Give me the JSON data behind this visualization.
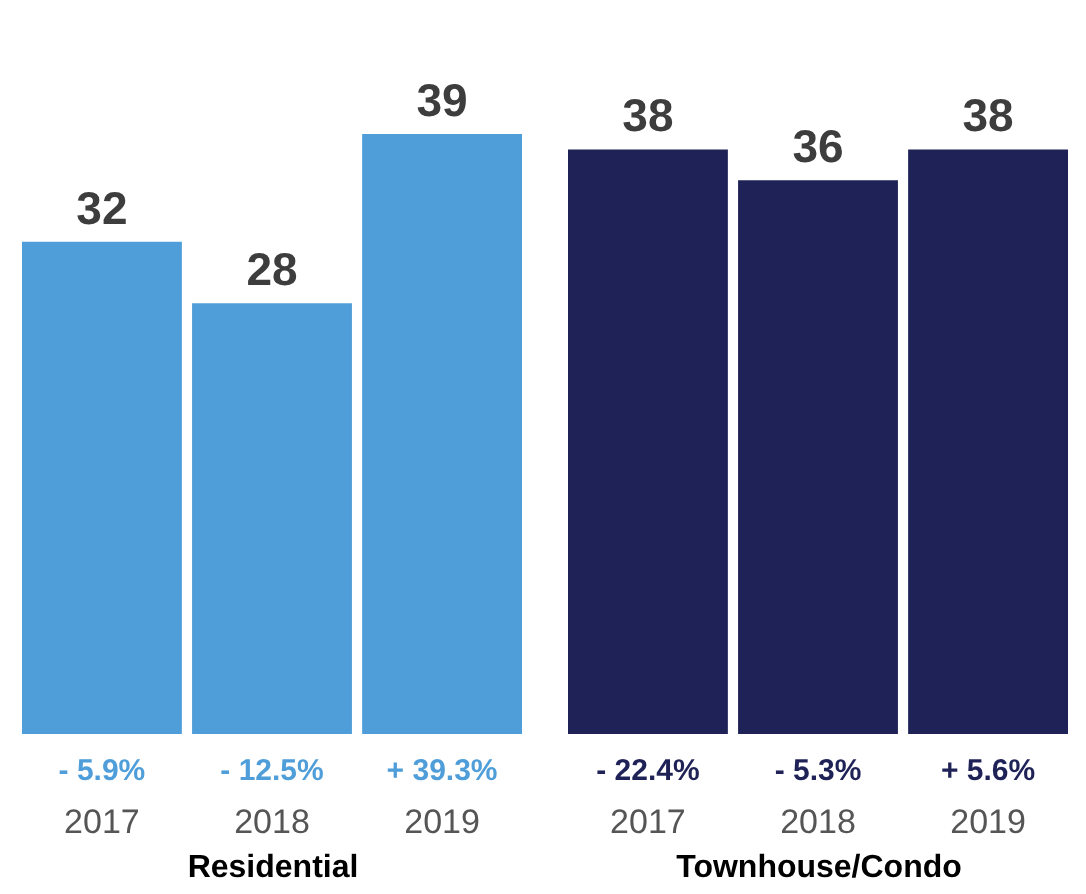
{
  "chart_data": [
    {
      "type": "bar",
      "xlabel": "Residential",
      "categories": [
        "2017",
        "2018",
        "2019"
      ],
      "values": [
        32,
        28,
        39
      ],
      "color": "#4f9ed9",
      "data_labels": true,
      "tick_labels": "x",
      "annotations": [
        "- 5.9%",
        "- 12.5%",
        "+ 39.3%"
      ]
    },
    {
      "type": "bar",
      "xlabel": "Townhouse/Condo",
      "categories": [
        "2017",
        "2018",
        "2019"
      ],
      "values": [
        38,
        36,
        38
      ],
      "color": "#1f2257",
      "data_labels": true,
      "tick_labels": "x",
      "annotations": [
        "- 22.4%",
        "- 5.3%",
        "+ 5.6%"
      ]
    }
  ]
}
